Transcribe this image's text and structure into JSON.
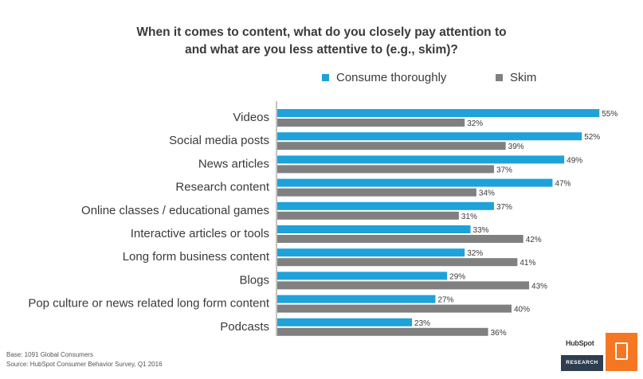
{
  "chart_data": {
    "type": "bar",
    "orientation": "horizontal",
    "title_lines": [
      "When it comes to content, what do you closely pay attention to",
      "and what are you less attentive to (e.g., skim)?"
    ],
    "categories": [
      "Videos",
      "Social media posts",
      "News articles",
      "Research content",
      "Online classes / educational games",
      "Interactive articles or tools",
      "Long form business content",
      "Blogs",
      "Pop culture or news related long form content",
      "Podcasts"
    ],
    "series": [
      {
        "name": "Consume thoroughly",
        "color": "#1ea2d9",
        "values": [
          55,
          52,
          49,
          47,
          37,
          33,
          32,
          29,
          27,
          23
        ],
        "labels": [
          "55%",
          "52%",
          "49%",
          "47%",
          "37%",
          "33%",
          "32%",
          "29%",
          "27%",
          "23%"
        ]
      },
      {
        "name": "Skim",
        "color": "#808080",
        "values": [
          32,
          39,
          37,
          34,
          31,
          42,
          41,
          43,
          40,
          36
        ],
        "labels": [
          "32%",
          "39%",
          "37%",
          "34%",
          "31%",
          "42%",
          "41%",
          "43%",
          "40%",
          "36%"
        ]
      }
    ],
    "value_unit": "%",
    "grid": false,
    "legend_position": "top"
  },
  "footer": {
    "base": "Base: 1091 Global Consumers",
    "source": "Source: HubSpot Consumer Behavior Survey, Q1 2016"
  },
  "badge": {
    "brand": "HubSpot",
    "label": "RESEARCH",
    "accent_color": "#f57722",
    "dark_color": "#2d3e50",
    "icon": "clipboard-chart-icon"
  }
}
